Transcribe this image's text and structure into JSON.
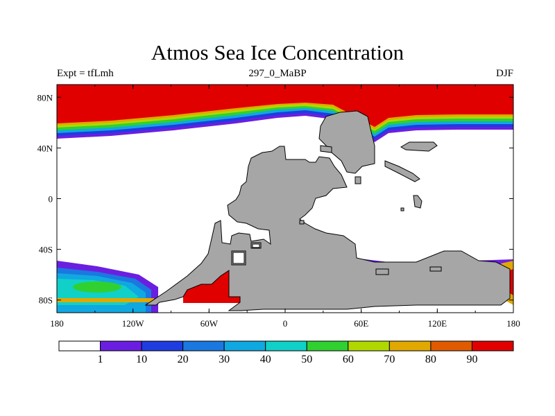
{
  "title": "Atmos Sea Ice Concentration",
  "subtitle_left": "Expt = tfLmh",
  "subtitle_center": "297_0_MaBP",
  "subtitle_right": "DJF",
  "x_ticks": [
    "180",
    "120W",
    "60W",
    "0",
    "60E",
    "120E",
    "180"
  ],
  "y_ticks": [
    "80N",
    "40N",
    "0",
    "40S",
    "80S"
  ],
  "colorbar": {
    "levels": [
      "1",
      "10",
      "20",
      "30",
      "40",
      "50",
      "60",
      "70",
      "80",
      "90"
    ],
    "colors": [
      "#ffffff",
      "#6a1fe0",
      "#1e3ce0",
      "#1a78e0",
      "#10a8e0",
      "#10d0c8",
      "#30d030",
      "#b0d800",
      "#e0a800",
      "#e05a00",
      "#e00000"
    ]
  },
  "colors": {
    "land": "#a6a6a6",
    "ice_full": "#e00000"
  }
}
